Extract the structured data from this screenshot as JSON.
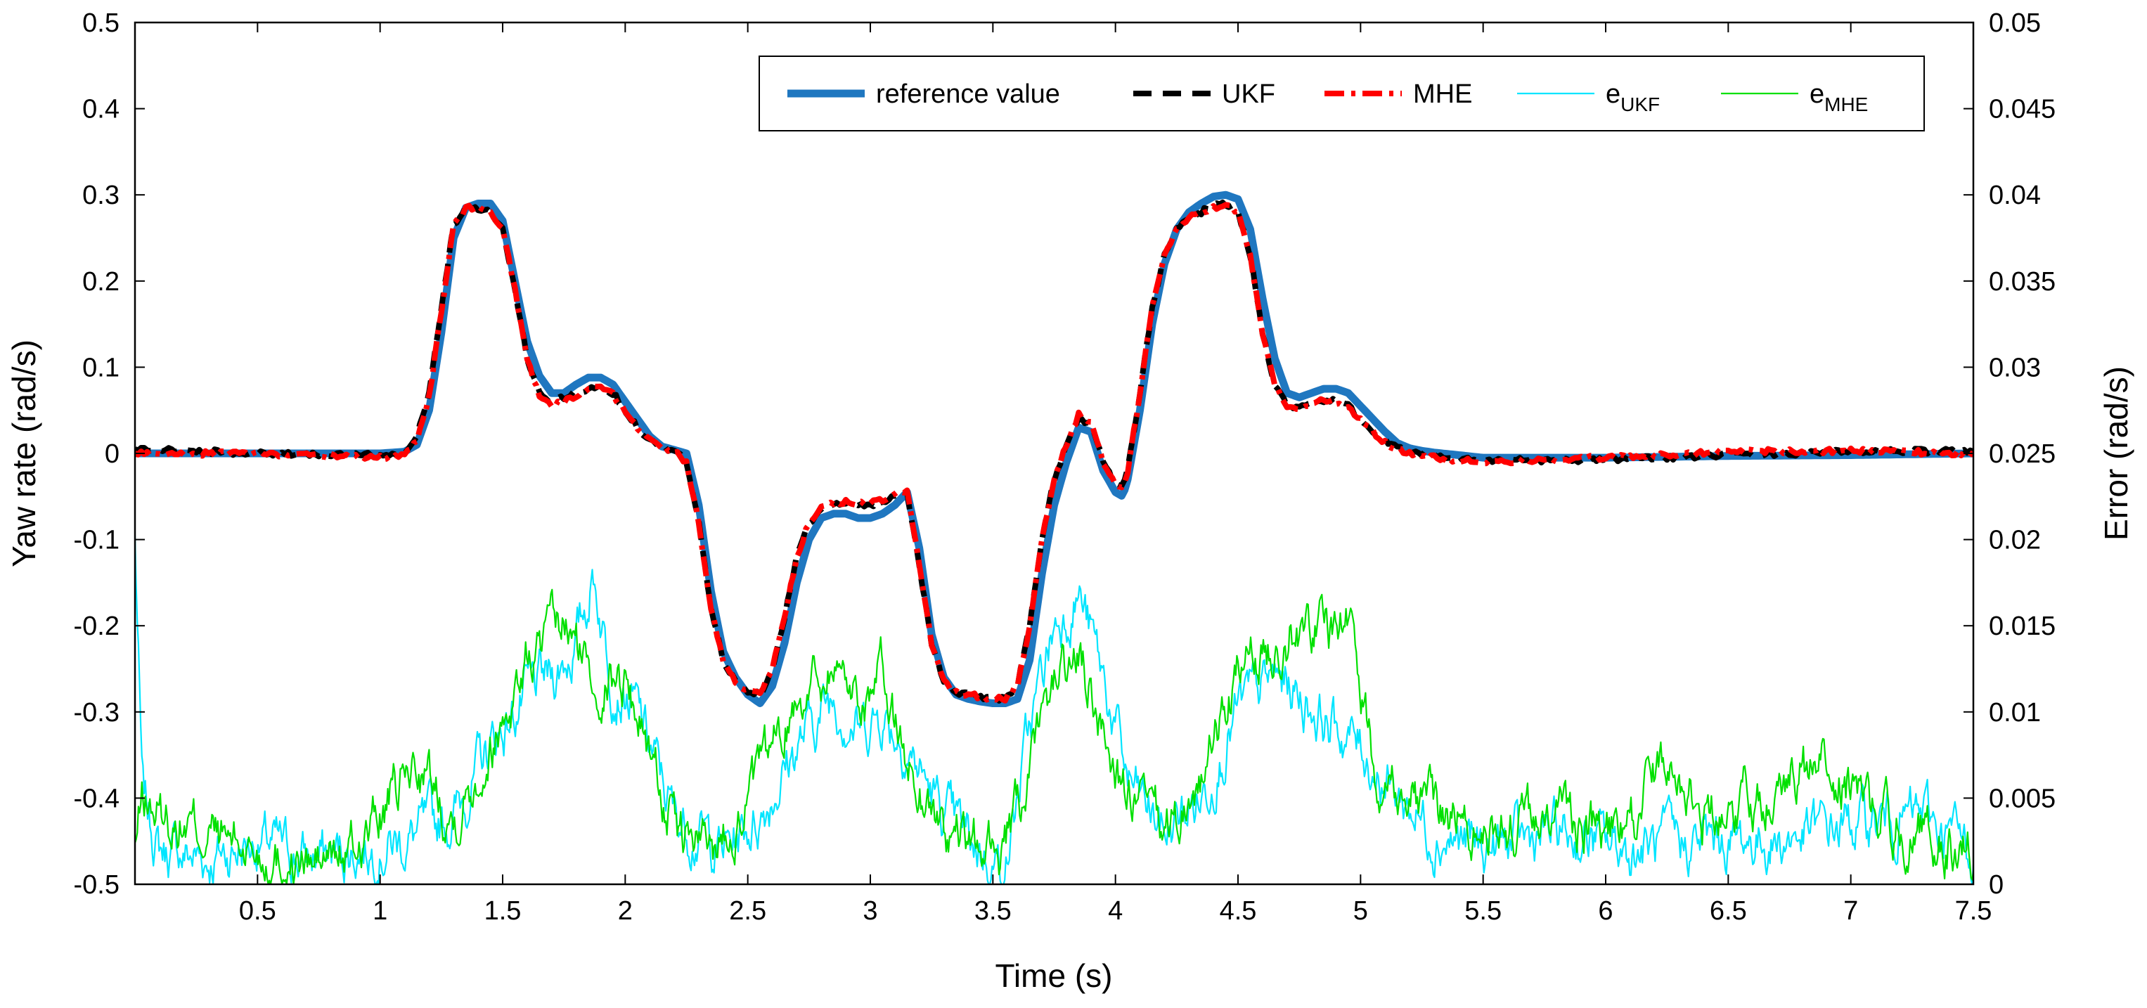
{
  "chart_data": {
    "type": "line",
    "title": "",
    "xlabel": "Time (s)",
    "ylabel_left": "Yaw rate (rad/s)",
    "ylabel_right": "Error (rad/s)",
    "xlim": [
      0,
      7.5
    ],
    "ylim_left": [
      -0.5,
      0.5
    ],
    "ylim_right": [
      0,
      0.05
    ],
    "grid": false,
    "legend_position": "top-right",
    "x_ticks": [
      0.5,
      1,
      1.5,
      2,
      2.5,
      3,
      3.5,
      4,
      4.5,
      5,
      5.5,
      6,
      6.5,
      7,
      7.5
    ],
    "x_tick_labels": [
      "0.5",
      "1",
      "1.5",
      "2",
      "2.5",
      "3",
      "3.5",
      "4",
      "4.5",
      "5",
      "5.5",
      "6",
      "6.5",
      "7",
      "7.5"
    ],
    "y_left_ticks": [
      0.5,
      0.4,
      0.3,
      0.2,
      0.1,
      0,
      -0.1,
      -0.2,
      -0.3,
      -0.4,
      -0.5
    ],
    "y_left_tick_labels": [
      "0.5",
      "0.4",
      "0.3",
      "0.2",
      "0.1",
      "0",
      "-0.1",
      "-0.2",
      "-0.3",
      "-0.4",
      "-0.5"
    ],
    "y_right_ticks": [
      0.05,
      0.045,
      0.04,
      0.035,
      0.03,
      0.025,
      0.02,
      0.015,
      0.01,
      0.005,
      0
    ],
    "y_right_tick_labels": [
      "0.05",
      "0.045",
      "0.04",
      "0.035",
      "0.03",
      "0.025",
      "0.02",
      "0.015",
      "0.01",
      "0.005",
      "0"
    ],
    "series": [
      {
        "name": "reference value",
        "axis": "left",
        "color": "#1f77c0",
        "style": "solid",
        "x": [
          0,
          0.5,
          1.0,
          1.1,
          1.15,
          1.2,
          1.25,
          1.3,
          1.35,
          1.4,
          1.45,
          1.5,
          1.55,
          1.6,
          1.65,
          1.7,
          1.75,
          1.8,
          1.85,
          1.9,
          1.95,
          2.0,
          2.05,
          2.1,
          2.15,
          2.2,
          2.25,
          2.3,
          2.35,
          2.4,
          2.45,
          2.5,
          2.55,
          2.6,
          2.65,
          2.7,
          2.75,
          2.8,
          2.85,
          2.9,
          2.95,
          3.0,
          3.05,
          3.1,
          3.15,
          3.2,
          3.25,
          3.3,
          3.35,
          3.4,
          3.45,
          3.5,
          3.55,
          3.6,
          3.65,
          3.7,
          3.75,
          3.8,
          3.85,
          3.9,
          3.95,
          4.0,
          4.03,
          4.05,
          4.1,
          4.15,
          4.2,
          4.25,
          4.3,
          4.35,
          4.4,
          4.45,
          4.5,
          4.55,
          4.6,
          4.65,
          4.7,
          4.75,
          4.8,
          4.85,
          4.9,
          4.95,
          5.0,
          5.05,
          5.1,
          5.15,
          5.2,
          5.25,
          5.3,
          5.5,
          6.0,
          6.5,
          7.0,
          7.5
        ],
        "values": [
          0,
          0,
          0,
          0.002,
          0.01,
          0.05,
          0.14,
          0.25,
          0.285,
          0.29,
          0.29,
          0.27,
          0.2,
          0.13,
          0.09,
          0.07,
          0.07,
          0.08,
          0.088,
          0.088,
          0.08,
          0.06,
          0.04,
          0.02,
          0.008,
          0.004,
          0.0,
          -0.06,
          -0.16,
          -0.23,
          -0.26,
          -0.28,
          -0.29,
          -0.27,
          -0.22,
          -0.15,
          -0.1,
          -0.075,
          -0.07,
          -0.07,
          -0.075,
          -0.075,
          -0.07,
          -0.06,
          -0.045,
          -0.11,
          -0.21,
          -0.26,
          -0.28,
          -0.285,
          -0.288,
          -0.29,
          -0.29,
          -0.285,
          -0.24,
          -0.14,
          -0.06,
          -0.01,
          0.03,
          0.025,
          -0.02,
          -0.045,
          -0.05,
          -0.03,
          0.05,
          0.15,
          0.22,
          0.26,
          0.28,
          0.29,
          0.298,
          0.3,
          0.295,
          0.26,
          0.18,
          0.11,
          0.07,
          0.065,
          0.07,
          0.075,
          0.075,
          0.07,
          0.055,
          0.04,
          0.025,
          0.012,
          0.006,
          0.003,
          0.001,
          -0.005,
          -0.005,
          -0.003,
          -0.002,
          0
        ]
      },
      {
        "name": "UKF",
        "axis": "left",
        "color": "#000000",
        "style": "dashed",
        "x": [
          0,
          0.5,
          1.0,
          1.1,
          1.15,
          1.2,
          1.25,
          1.3,
          1.35,
          1.4,
          1.45,
          1.5,
          1.55,
          1.6,
          1.65,
          1.7,
          1.75,
          1.8,
          1.85,
          1.9,
          1.95,
          2.0,
          2.05,
          2.1,
          2.15,
          2.2,
          2.25,
          2.3,
          2.35,
          2.4,
          2.45,
          2.5,
          2.55,
          2.6,
          2.65,
          2.7,
          2.75,
          2.8,
          2.85,
          2.9,
          2.95,
          3.0,
          3.05,
          3.1,
          3.15,
          3.2,
          3.25,
          3.3,
          3.35,
          3.4,
          3.45,
          3.5,
          3.55,
          3.6,
          3.65,
          3.7,
          3.75,
          3.8,
          3.85,
          3.9,
          3.95,
          4.0,
          4.03,
          4.05,
          4.1,
          4.15,
          4.2,
          4.25,
          4.3,
          4.35,
          4.4,
          4.45,
          4.5,
          4.55,
          4.6,
          4.65,
          4.7,
          4.75,
          4.8,
          4.85,
          4.9,
          4.95,
          5.0,
          5.05,
          5.1,
          5.15,
          5.2,
          5.25,
          5.3,
          5.5,
          6.0,
          6.5,
          7.0,
          7.5
        ],
        "values": [
          0.005,
          0.0,
          -0.002,
          0.003,
          0.02,
          0.07,
          0.17,
          0.265,
          0.285,
          0.285,
          0.28,
          0.26,
          0.19,
          0.11,
          0.07,
          0.06,
          0.065,
          0.07,
          0.075,
          0.075,
          0.07,
          0.05,
          0.03,
          0.015,
          0.007,
          0.003,
          -0.01,
          -0.08,
          -0.18,
          -0.24,
          -0.265,
          -0.275,
          -0.28,
          -0.25,
          -0.19,
          -0.12,
          -0.08,
          -0.065,
          -0.06,
          -0.058,
          -0.06,
          -0.06,
          -0.055,
          -0.05,
          -0.045,
          -0.13,
          -0.22,
          -0.265,
          -0.278,
          -0.28,
          -0.282,
          -0.285,
          -0.285,
          -0.27,
          -0.2,
          -0.1,
          -0.03,
          0.01,
          0.04,
          0.035,
          -0.01,
          -0.035,
          -0.04,
          -0.02,
          0.07,
          0.17,
          0.23,
          0.26,
          0.275,
          0.28,
          0.288,
          0.29,
          0.28,
          0.23,
          0.14,
          0.08,
          0.055,
          0.055,
          0.058,
          0.062,
          0.06,
          0.055,
          0.04,
          0.025,
          0.015,
          0.006,
          0.003,
          0.0,
          -0.002,
          -0.008,
          -0.008,
          -0.002,
          0.002,
          0.003
        ]
      },
      {
        "name": "MHE",
        "axis": "left",
        "color": "#ff0000",
        "style": "dash-dot",
        "x": [
          0,
          0.5,
          1.0,
          1.1,
          1.15,
          1.2,
          1.25,
          1.3,
          1.35,
          1.4,
          1.45,
          1.5,
          1.55,
          1.6,
          1.65,
          1.7,
          1.75,
          1.8,
          1.85,
          1.9,
          1.95,
          2.0,
          2.05,
          2.1,
          2.15,
          2.2,
          2.25,
          2.3,
          2.35,
          2.4,
          2.45,
          2.5,
          2.55,
          2.6,
          2.65,
          2.7,
          2.75,
          2.8,
          2.85,
          2.9,
          2.95,
          3.0,
          3.05,
          3.1,
          3.15,
          3.2,
          3.25,
          3.3,
          3.35,
          3.4,
          3.45,
          3.5,
          3.55,
          3.6,
          3.65,
          3.7,
          3.75,
          3.8,
          3.85,
          3.9,
          3.95,
          4.0,
          4.03,
          4.05,
          4.1,
          4.15,
          4.2,
          4.25,
          4.3,
          4.35,
          4.4,
          4.45,
          4.5,
          4.55,
          4.6,
          4.65,
          4.7,
          4.75,
          4.8,
          4.85,
          4.9,
          4.95,
          5.0,
          5.05,
          5.1,
          5.15,
          5.2,
          5.25,
          5.3,
          5.5,
          6.0,
          6.5,
          7.0,
          7.5
        ],
        "values": [
          0.0,
          0.0,
          -0.005,
          -0.003,
          0.015,
          0.065,
          0.165,
          0.265,
          0.285,
          0.285,
          0.282,
          0.26,
          0.19,
          0.11,
          0.065,
          0.055,
          0.06,
          0.068,
          0.075,
          0.075,
          0.068,
          0.05,
          0.03,
          0.015,
          0.008,
          0.003,
          -0.01,
          -0.08,
          -0.18,
          -0.24,
          -0.265,
          -0.275,
          -0.28,
          -0.25,
          -0.19,
          -0.12,
          -0.08,
          -0.063,
          -0.058,
          -0.056,
          -0.058,
          -0.058,
          -0.053,
          -0.048,
          -0.043,
          -0.13,
          -0.22,
          -0.265,
          -0.278,
          -0.28,
          -0.282,
          -0.285,
          -0.285,
          -0.27,
          -0.2,
          -0.1,
          -0.03,
          0.01,
          0.045,
          0.035,
          -0.01,
          -0.035,
          -0.04,
          -0.02,
          0.07,
          0.17,
          0.23,
          0.26,
          0.275,
          0.28,
          0.285,
          0.29,
          0.28,
          0.23,
          0.14,
          0.08,
          0.055,
          0.052,
          0.058,
          0.062,
          0.06,
          0.052,
          0.04,
          0.025,
          0.012,
          0.004,
          0.0,
          -0.003,
          -0.005,
          -0.01,
          -0.005,
          0.002,
          0.003,
          0.0
        ]
      },
      {
        "name": "e_UKF",
        "label_main": "e",
        "label_sub": "UKF",
        "axis": "right",
        "color": "#00e5ff",
        "style": "solid-thin",
        "x": [
          0,
          0.03,
          0.1,
          0.3,
          0.5,
          0.7,
          0.9,
          1.1,
          1.3,
          1.45,
          1.6,
          1.7,
          1.8,
          1.87,
          1.95,
          2.05,
          2.2,
          2.4,
          2.55,
          2.7,
          2.85,
          2.95,
          3.05,
          3.15,
          3.3,
          3.45,
          3.55,
          3.65,
          3.75,
          3.85,
          3.95,
          4.05,
          4.2,
          4.35,
          4.5,
          4.65,
          4.75,
          4.9,
          5.0,
          5.1,
          5.3,
          5.5,
          5.8,
          6.1,
          6.4,
          6.7,
          7.0,
          7.3,
          7.5
        ],
        "values": [
          0.02,
          0.005,
          0.002,
          0.0015,
          0.0025,
          0.0015,
          0.002,
          0.0025,
          0.004,
          0.008,
          0.011,
          0.012,
          0.014,
          0.018,
          0.012,
          0.01,
          0.004,
          0.002,
          0.004,
          0.008,
          0.011,
          0.009,
          0.01,
          0.008,
          0.004,
          0.002,
          0.001,
          0.009,
          0.015,
          0.017,
          0.012,
          0.006,
          0.003,
          0.005,
          0.01,
          0.012,
          0.011,
          0.009,
          0.008,
          0.006,
          0.003,
          0.002,
          0.003,
          0.002,
          0.0025,
          0.0025,
          0.0035,
          0.004,
          0.002
        ]
      },
      {
        "name": "e_MHE",
        "label_main": "e",
        "label_sub": "MHE",
        "axis": "right",
        "color": "#00e000",
        "style": "solid-thin",
        "x": [
          0,
          0.03,
          0.1,
          0.3,
          0.5,
          0.7,
          0.9,
          1.05,
          1.15,
          1.3,
          1.45,
          1.6,
          1.75,
          1.87,
          2.0,
          2.1,
          2.2,
          2.35,
          2.55,
          2.7,
          2.85,
          2.95,
          3.05,
          3.15,
          3.3,
          3.45,
          3.55,
          3.65,
          3.75,
          3.85,
          3.95,
          4.05,
          4.2,
          4.35,
          4.5,
          4.65,
          4.75,
          4.9,
          4.95,
          5.05,
          5.25,
          5.5,
          5.8,
          6.1,
          6.25,
          6.4,
          6.55,
          6.75,
          6.9,
          7.1,
          7.3,
          7.5
        ],
        "values": [
          0.002,
          0.005,
          0.004,
          0.003,
          0.002,
          0.001,
          0.002,
          0.005,
          0.007,
          0.004,
          0.008,
          0.013,
          0.015,
          0.012,
          0.012,
          0.008,
          0.003,
          0.002,
          0.006,
          0.011,
          0.013,
          0.011,
          0.012,
          0.007,
          0.003,
          0.002,
          0.002,
          0.006,
          0.012,
          0.013,
          0.009,
          0.005,
          0.003,
          0.006,
          0.012,
          0.014,
          0.015,
          0.015,
          0.016,
          0.007,
          0.005,
          0.003,
          0.004,
          0.003,
          0.008,
          0.004,
          0.005,
          0.006,
          0.007,
          0.004,
          0.003,
          0.002
        ]
      }
    ]
  }
}
